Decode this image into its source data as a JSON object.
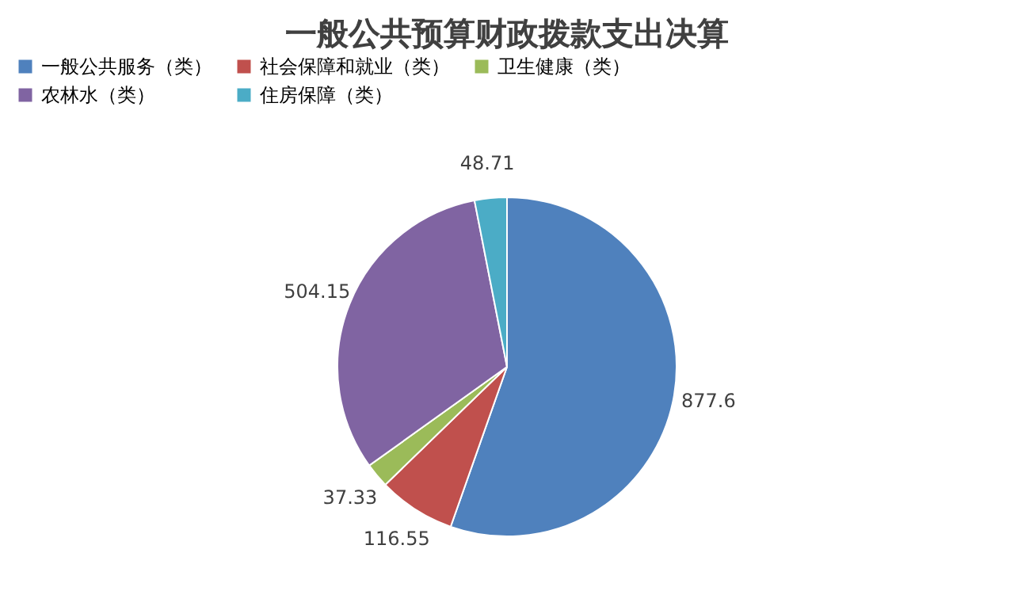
{
  "chart_data": {
    "type": "pie",
    "title": "一般公共预算财政拨款支出决算",
    "categories": [
      "一般公共服务（类）",
      "社会保障和就业（类）",
      "卫生健康（类）",
      "农林水（类）",
      "住房保障（类）"
    ],
    "values": [
      877.6,
      116.55,
      37.33,
      504.15,
      48.71
    ],
    "colors": [
      "#4f81bd",
      "#c0504d",
      "#9bbb59",
      "#8064a2",
      "#4bacc6"
    ],
    "data_labels": true,
    "legend": "top"
  }
}
